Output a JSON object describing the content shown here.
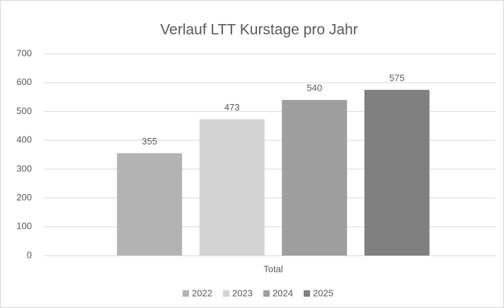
{
  "chart_data": {
    "type": "bar",
    "title": "Verlauf LTT Kurstage pro Jahr",
    "categories": [
      "Total"
    ],
    "series": [
      {
        "name": "2022",
        "color": "#b3b3b3",
        "values": [
          355
        ]
      },
      {
        "name": "2023",
        "color": "#d3d3d3",
        "values": [
          473
        ]
      },
      {
        "name": "2024",
        "color": "#9e9e9e",
        "values": [
          540
        ]
      },
      {
        "name": "2025",
        "color": "#808080",
        "values": [
          575
        ]
      }
    ],
    "ylim": [
      0,
      700
    ],
    "yticks": [
      0,
      100,
      200,
      300,
      400,
      500,
      600,
      700
    ],
    "grid": true,
    "legend": "bottom"
  }
}
